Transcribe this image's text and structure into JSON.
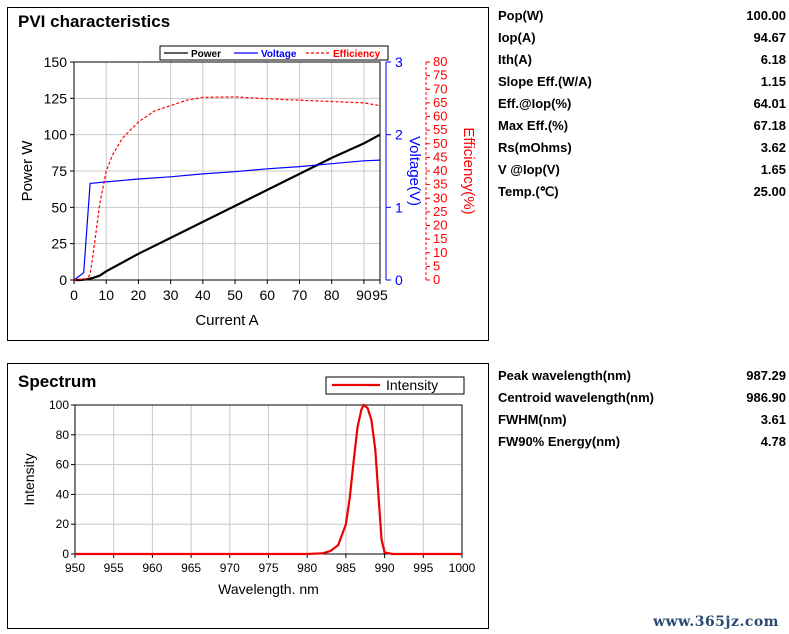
{
  "pvi": {
    "title": "PVI characteristics",
    "legend": [
      "Power",
      "Voltage",
      "Efficiency"
    ],
    "params": [
      {
        "name": "Pop(W)",
        "value": "100.00"
      },
      {
        "name": "Iop(A)",
        "value": "94.67"
      },
      {
        "name": "Ith(A)",
        "value": "6.18"
      },
      {
        "name": "Slope Eff.(W/A)",
        "value": "1.15"
      },
      {
        "name": "Eff.@Iop(%)",
        "value": "64.01"
      },
      {
        "name": "Max Eff.(%)",
        "value": "67.18"
      },
      {
        "name": "Rs(mOhms)",
        "value": "3.62"
      },
      {
        "name": "V @Iop(V)",
        "value": "1.65"
      },
      {
        "name": "Temp.(℃)",
        "value": "25.00"
      }
    ]
  },
  "spectrum": {
    "title": "Spectrum",
    "legend": "Intensity",
    "params": [
      {
        "name": "Peak wavelength(nm)",
        "value": "987.29"
      },
      {
        "name": "Centroid wavelength(nm)",
        "value": "986.90"
      },
      {
        "name": "FWHM(nm)",
        "value": "3.61"
      },
      {
        "name": "FW90% Energy(nm)",
        "value": "4.78"
      }
    ]
  },
  "watermark": "www.365jz.com",
  "colors": {
    "power": "#000000",
    "voltage": "#0000ff",
    "efficiency": "#ff0000",
    "intensity": "#ee0000"
  },
  "chart_data": [
    {
      "type": "line",
      "title": "PVI characteristics",
      "xlabel": "Current A",
      "xlim": [
        0,
        95
      ],
      "xticks": [
        0,
        10,
        20,
        30,
        40,
        50,
        60,
        70,
        80,
        90,
        95
      ],
      "legend_position": "top",
      "grid": true,
      "axes": {
        "left": {
          "label": "Power W",
          "lim": [
            0,
            150
          ],
          "ticks": [
            0,
            25,
            50,
            75,
            100,
            125,
            150
          ]
        },
        "right1": {
          "label": "Voltage(V)",
          "lim": [
            0,
            3
          ],
          "ticks": [
            0,
            1,
            2,
            3
          ]
        },
        "right2": {
          "label": "Efficiency(%)",
          "lim": [
            0,
            80
          ],
          "ticks": [
            0,
            5,
            10,
            15,
            20,
            25,
            30,
            35,
            40,
            45,
            50,
            55,
            60,
            65,
            70,
            75,
            80
          ]
        }
      },
      "series": [
        {
          "name": "Power",
          "axis": "left",
          "style": "solid",
          "x": [
            0,
            2,
            4,
            6,
            8,
            10,
            20,
            30,
            40,
            50,
            60,
            70,
            80,
            90,
            95
          ],
          "y": [
            0,
            0,
            0.5,
            1.5,
            3,
            6,
            18,
            29,
            40,
            51,
            62,
            73,
            84,
            94,
            100
          ]
        },
        {
          "name": "Voltage",
          "axis": "right1",
          "style": "solid",
          "x": [
            0,
            3,
            5,
            10,
            20,
            30,
            40,
            50,
            60,
            70,
            80,
            90,
            95
          ],
          "y": [
            0,
            0.1,
            1.33,
            1.35,
            1.39,
            1.42,
            1.46,
            1.49,
            1.53,
            1.56,
            1.6,
            1.64,
            1.65
          ]
        },
        {
          "name": "Efficiency",
          "axis": "right2",
          "style": "dashed",
          "x": [
            0,
            4,
            5,
            6,
            8,
            10,
            12,
            15,
            20,
            25,
            30,
            35,
            40,
            50,
            60,
            70,
            80,
            90,
            95
          ],
          "y": [
            0,
            0.5,
            2,
            10,
            28,
            40,
            46,
            52,
            58,
            62,
            64,
            66,
            67,
            67.2,
            66.5,
            66,
            65.5,
            65,
            64
          ]
        }
      ]
    },
    {
      "type": "line",
      "title": "Spectrum",
      "xlabel": "Wavelength. nm",
      "ylabel": "Intensity",
      "xlim": [
        950,
        1000
      ],
      "ylim": [
        0,
        100
      ],
      "xticks": [
        950,
        955,
        960,
        965,
        970,
        975,
        980,
        985,
        990,
        995,
        1000
      ],
      "yticks": [
        0,
        20,
        40,
        60,
        80,
        100
      ],
      "legend_position": "top-right",
      "grid": true,
      "series": [
        {
          "name": "Intensity",
          "x": [
            950,
            980,
            982,
            983,
            984,
            985,
            985.5,
            986,
            986.5,
            987,
            987.3,
            987.8,
            988.3,
            988.8,
            989.2,
            989.6,
            990,
            991,
            1000
          ],
          "y": [
            0,
            0,
            0.5,
            2,
            6,
            20,
            38,
            62,
            85,
            97,
            100,
            98,
            90,
            70,
            40,
            10,
            1,
            0,
            0
          ]
        }
      ]
    }
  ]
}
